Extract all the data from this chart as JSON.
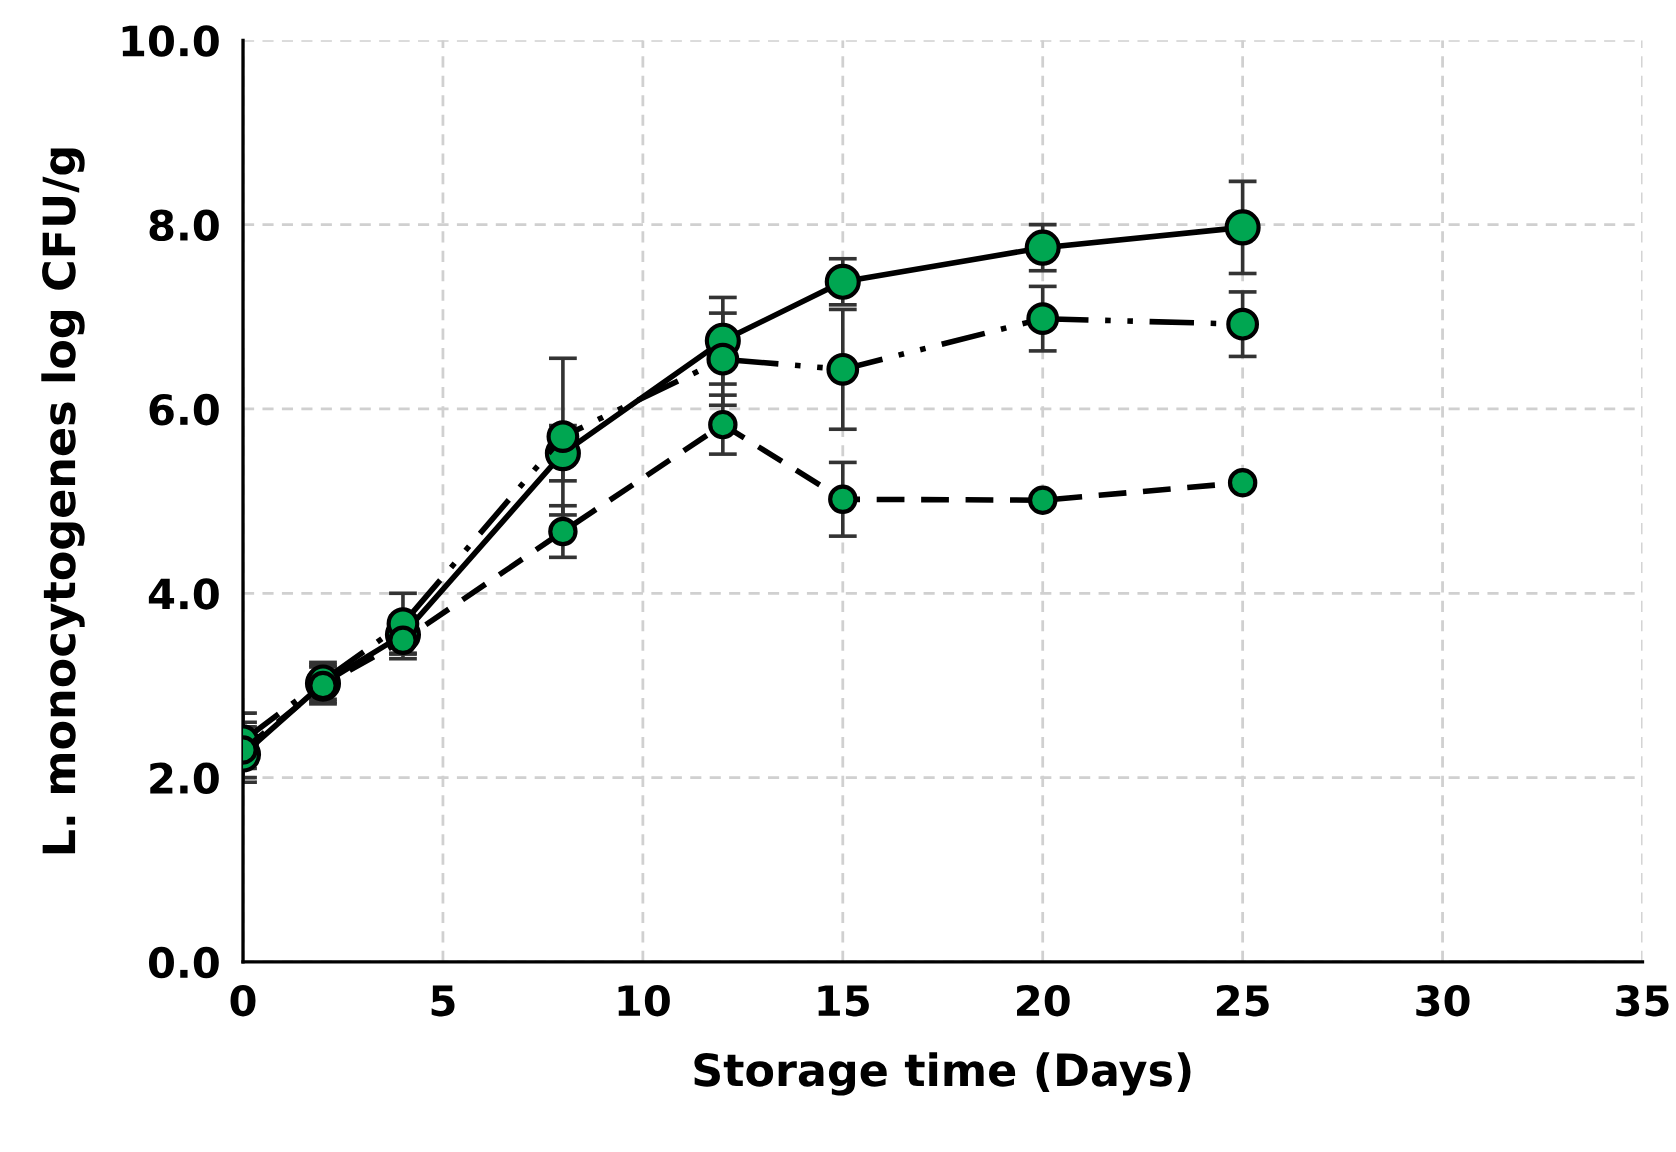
{
  "chart_data": {
    "type": "line",
    "xlabel": "Storage time (Days)",
    "ylabel": "L. monocytogenes log CFU/g",
    "x": [
      0,
      2,
      4,
      8,
      12,
      15,
      20,
      25
    ],
    "series": [
      {
        "color": "#00a651",
        "line_style": "solid",
        "values": [
          2.25,
          3.02,
          3.55,
          5.52,
          6.74,
          7.38,
          7.75,
          7.97
        ],
        "errors": [
          0.3,
          0.2,
          0.2,
          0.3,
          0.47,
          0.25,
          0.25,
          0.5
        ]
      },
      {
        "color": "#00a651",
        "line_style": "dashdot",
        "values": [
          2.4,
          3.05,
          3.67,
          5.7,
          6.54,
          6.43,
          6.98,
          6.92
        ],
        "errors": [
          0.3,
          0.2,
          0.33,
          0.85,
          0.5,
          0.65,
          0.35,
          0.35
        ]
      },
      {
        "color": "#00a651",
        "line_style": "dashed",
        "values": [
          2.3,
          3.0,
          3.49,
          4.67,
          5.83,
          5.02,
          5.01,
          5.2
        ],
        "errors": [
          0.3,
          0.2,
          0.2,
          0.28,
          0.32,
          0.4,
          null,
          null
        ]
      }
    ],
    "marker": "circle",
    "xlim": [
      0,
      35
    ],
    "xticks": [
      0,
      5,
      10,
      15,
      20,
      25,
      30,
      35
    ],
    "ylim": [
      0,
      10
    ],
    "yticks": [
      {
        "value": 0,
        "label": "0.0"
      },
      {
        "value": 2,
        "label": "2.0"
      },
      {
        "value": 4,
        "label": "4.0"
      },
      {
        "value": 6,
        "label": "6.0"
      },
      {
        "value": 8,
        "label": "8.0"
      },
      {
        "value": 10,
        "label": "10.0"
      }
    ],
    "grid": true
  }
}
